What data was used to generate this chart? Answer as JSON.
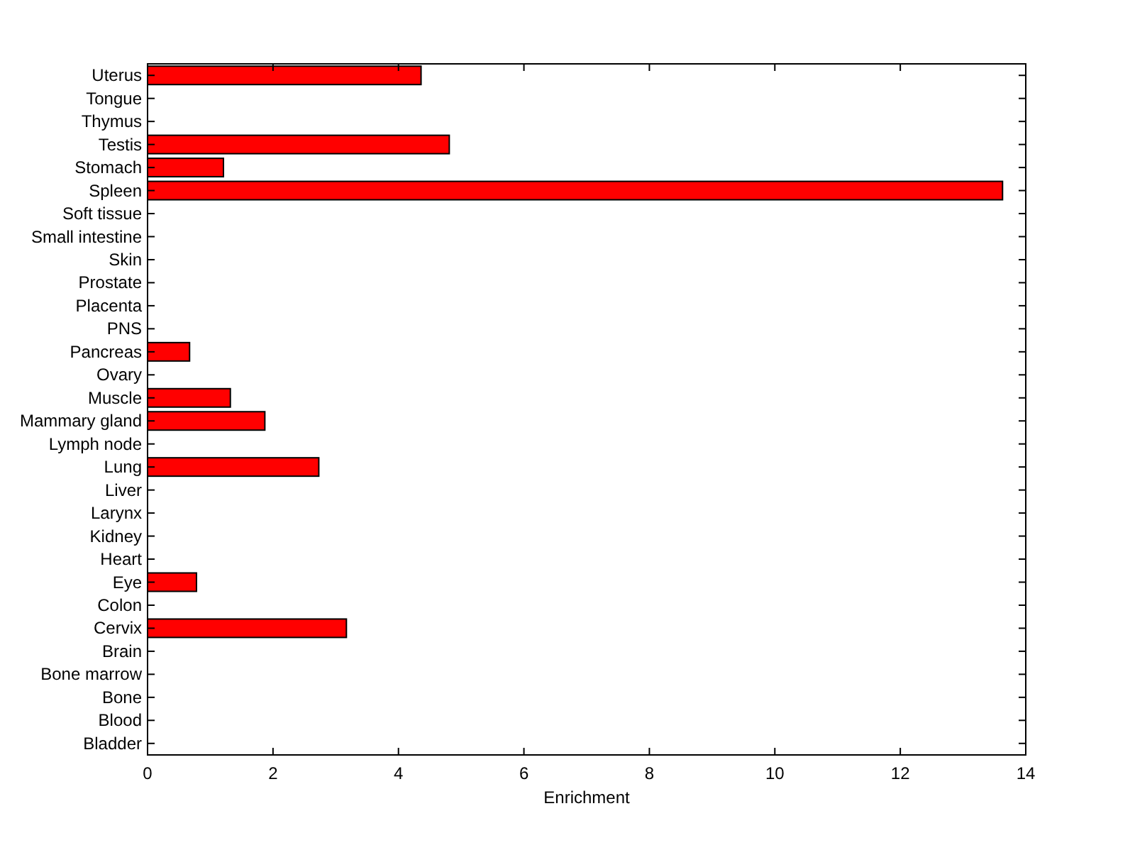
{
  "chart_data": {
    "type": "bar",
    "orientation": "horizontal",
    "xlabel": "Enrichment",
    "categories": [
      "Uterus",
      "Tongue",
      "Thymus",
      "Testis",
      "Stomach",
      "Spleen",
      "Soft tissue",
      "Small intestine",
      "Skin",
      "Prostate",
      "Placenta",
      "PNS",
      "Pancreas",
      "Ovary",
      "Muscle",
      "Mammary gland",
      "Lymph node",
      "Lung",
      "Liver",
      "Larynx",
      "Kidney",
      "Heart",
      "Eye",
      "Colon",
      "Cervix",
      "Brain",
      "Bone marrow",
      "Bone",
      "Blood",
      "Bladder"
    ],
    "values": [
      4.36,
      0,
      0,
      4.81,
      1.21,
      13.63,
      0,
      0,
      0,
      0,
      0,
      0,
      0.67,
      0,
      1.32,
      1.87,
      0,
      2.73,
      0,
      0,
      0,
      0,
      0.78,
      0,
      3.17,
      0,
      0,
      0,
      0,
      0
    ],
    "color": "#ff0000",
    "xlim": [
      0,
      14
    ],
    "xticks": [
      0,
      2,
      4,
      6,
      8,
      10,
      12,
      14
    ],
    "grid": false
  }
}
